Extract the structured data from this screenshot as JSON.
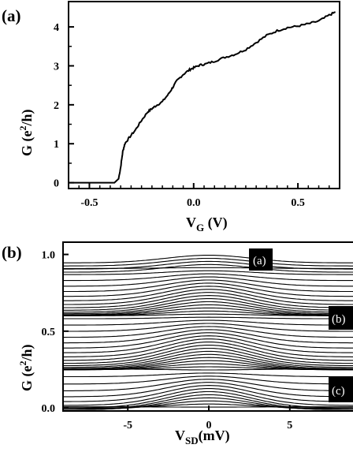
{
  "chart_data": [
    {
      "panel_label": "(a)",
      "type": "line",
      "xlabel": "V_G (V)",
      "ylabel": "G (e²/h)",
      "xlim": [
        -0.6,
        0.7
      ],
      "ylim": [
        -0.15,
        4.65
      ],
      "x_ticks": [
        "-0.5",
        "0.0",
        "0.5"
      ],
      "y_ticks": [
        "0",
        "1",
        "2",
        "3",
        "4"
      ],
      "x": [
        -0.6,
        -0.5,
        -0.4,
        -0.38,
        -0.36,
        -0.35,
        -0.34,
        -0.33,
        -0.31,
        -0.28,
        -0.25,
        -0.22,
        -0.2,
        -0.18,
        -0.15,
        -0.12,
        -0.1,
        -0.08,
        -0.05,
        -0.02,
        0.0,
        0.03,
        0.06,
        0.1,
        0.15,
        0.2,
        0.25,
        0.3,
        0.35,
        0.4,
        0.45,
        0.5,
        0.55,
        0.6,
        0.65,
        0.68
      ],
      "y": [
        0.0,
        0.0,
        0.0,
        0.0,
        0.1,
        0.4,
        0.8,
        1.0,
        1.15,
        1.35,
        1.6,
        1.82,
        1.9,
        1.98,
        2.08,
        2.28,
        2.45,
        2.62,
        2.78,
        2.9,
        2.95,
        3.02,
        3.05,
        3.12,
        3.22,
        3.3,
        3.42,
        3.6,
        3.78,
        3.9,
        3.98,
        4.02,
        4.08,
        4.15,
        4.3,
        4.38
      ]
    },
    {
      "panel_label": "(b)",
      "type": "line",
      "xlabel": "V_SD (mV)",
      "ylabel": "G (e²/h)",
      "xlim": [
        -9,
        9
      ],
      "ylim": [
        -0.02,
        1.08
      ],
      "x_ticks": [
        "-5",
        "0",
        "5"
      ],
      "y_ticks": [
        "0.0",
        "0.5",
        "1.0"
      ],
      "curve_count": 50,
      "annotations": [
        "(a)",
        "(b)",
        "(c)"
      ]
    }
  ]
}
